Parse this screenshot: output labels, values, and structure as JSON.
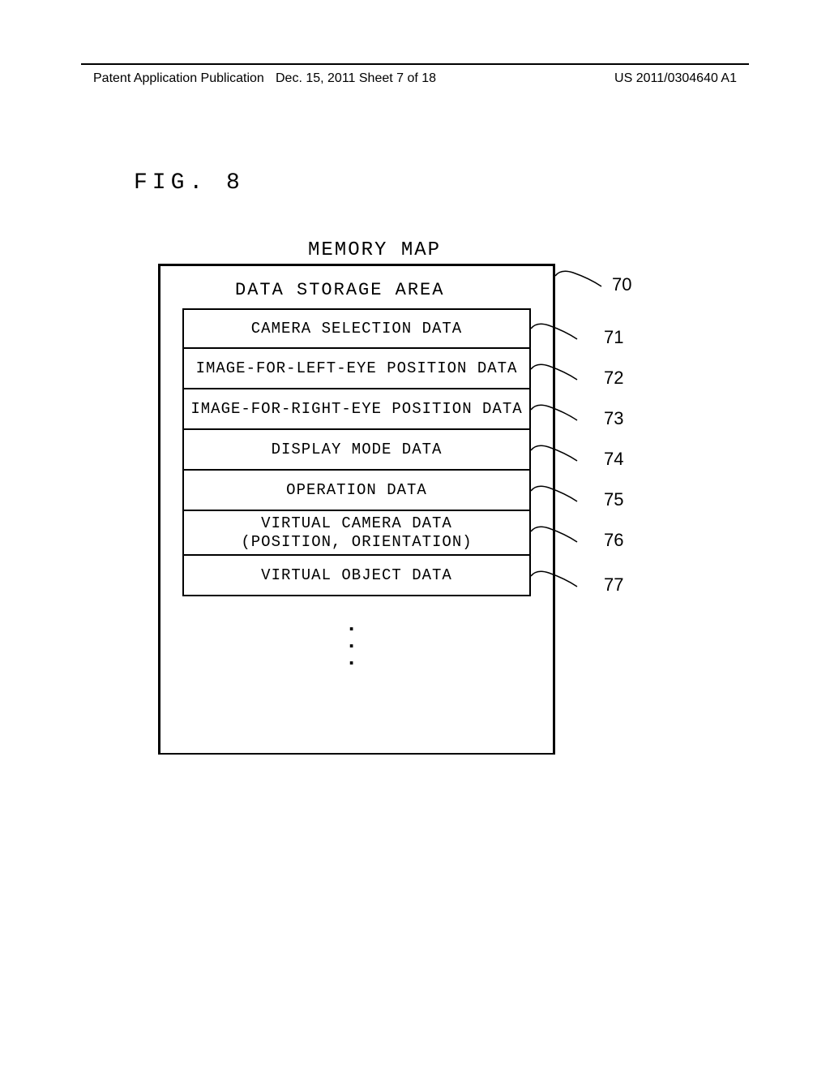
{
  "header": {
    "left": "Patent Application Publication",
    "center": "Dec. 15, 2011  Sheet 7 of 18",
    "right": "US 2011/0304640 A1"
  },
  "figure_label": "FIG. 8",
  "diagram_title": "MEMORY MAP",
  "storage_area_title": "DATA STORAGE AREA",
  "boxes": [
    {
      "label": "CAMERA SELECTION DATA",
      "ref": "71"
    },
    {
      "label": "IMAGE-FOR-LEFT-EYE POSITION DATA",
      "ref": "72"
    },
    {
      "label": "IMAGE-FOR-RIGHT-EYE POSITION DATA",
      "ref": "73"
    },
    {
      "label": "DISPLAY MODE DATA",
      "ref": "74"
    },
    {
      "label": "OPERATION DATA",
      "ref": "75"
    },
    {
      "label": "VIRTUAL CAMERA DATA\n(POSITION, ORIENTATION)",
      "ref": "76"
    },
    {
      "label": "VIRTUAL OBJECT DATA",
      "ref": "77"
    }
  ],
  "outer_ref": "70",
  "colors": {
    "line": "#000000",
    "bg": "#ffffff",
    "text": "#000000"
  }
}
